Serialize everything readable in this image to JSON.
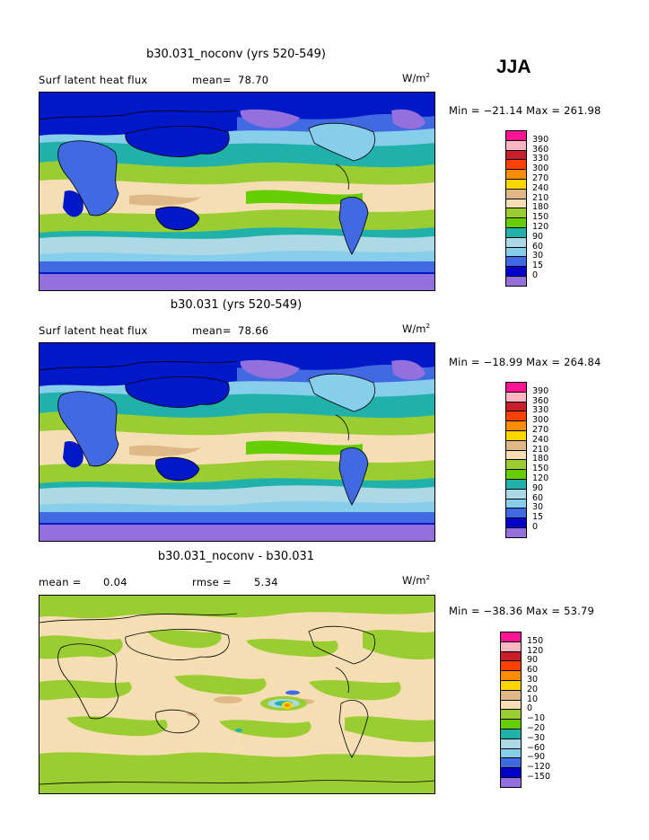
{
  "season": "JJA",
  "units": {
    "base": "W/m",
    "exp": "2"
  },
  "panels": [
    {
      "title": "b30.031_noconv (yrs 520-549)",
      "left_label": "Surf latent heat flux",
      "stat_label": "mean=",
      "stat_value": "78.70",
      "minmax": "Min = −21.14 Max = 261.98",
      "scheme": "abs"
    },
    {
      "title": "b30.031 (yrs 520-549)",
      "left_label": "Surf latent heat flux",
      "stat_label": "mean=",
      "stat_value": "78.66",
      "minmax": "Min = −18.99 Max = 264.84",
      "scheme": "abs"
    },
    {
      "title": "b30.031_noconv - b30.031",
      "left_label": "mean =",
      "left_value": "0.04",
      "stat_label": "rmse =",
      "stat_value": "5.34",
      "minmax": "Min = −38.36 Max =  53.79",
      "scheme": "diff"
    }
  ],
  "colorbars": {
    "abs": {
      "labels": [
        "390",
        "360",
        "330",
        "300",
        "270",
        "240",
        "210",
        "180",
        "150",
        "120",
        "90",
        "60",
        "30",
        "15",
        "0"
      ],
      "colors": [
        "#ff1493",
        "#ffb6c1",
        "#c71e2a",
        "#ff4000",
        "#ff8c00",
        "#ffd700",
        "#deb887",
        "#f5deb3",
        "#9acd32",
        "#66cd00",
        "#20b2aa",
        "#add8e6",
        "#87ceeb",
        "#4169e1",
        "#0000cd",
        "#9370db"
      ]
    },
    "diff": {
      "labels": [
        "150",
        "120",
        "90",
        "60",
        "30",
        "20",
        "10",
        "0",
        "−10",
        "−20",
        "−30",
        "−60",
        "−90",
        "−120",
        "−150"
      ],
      "colors": [
        "#ff1493",
        "#ffb6c1",
        "#c71e2a",
        "#ff4000",
        "#ff8c00",
        "#ffd700",
        "#deb887",
        "#f5deb3",
        "#9acd32",
        "#66cd00",
        "#20b2aa",
        "#add8e6",
        "#87ceeb",
        "#4169e1",
        "#0000cd",
        "#9370db"
      ]
    }
  }
}
